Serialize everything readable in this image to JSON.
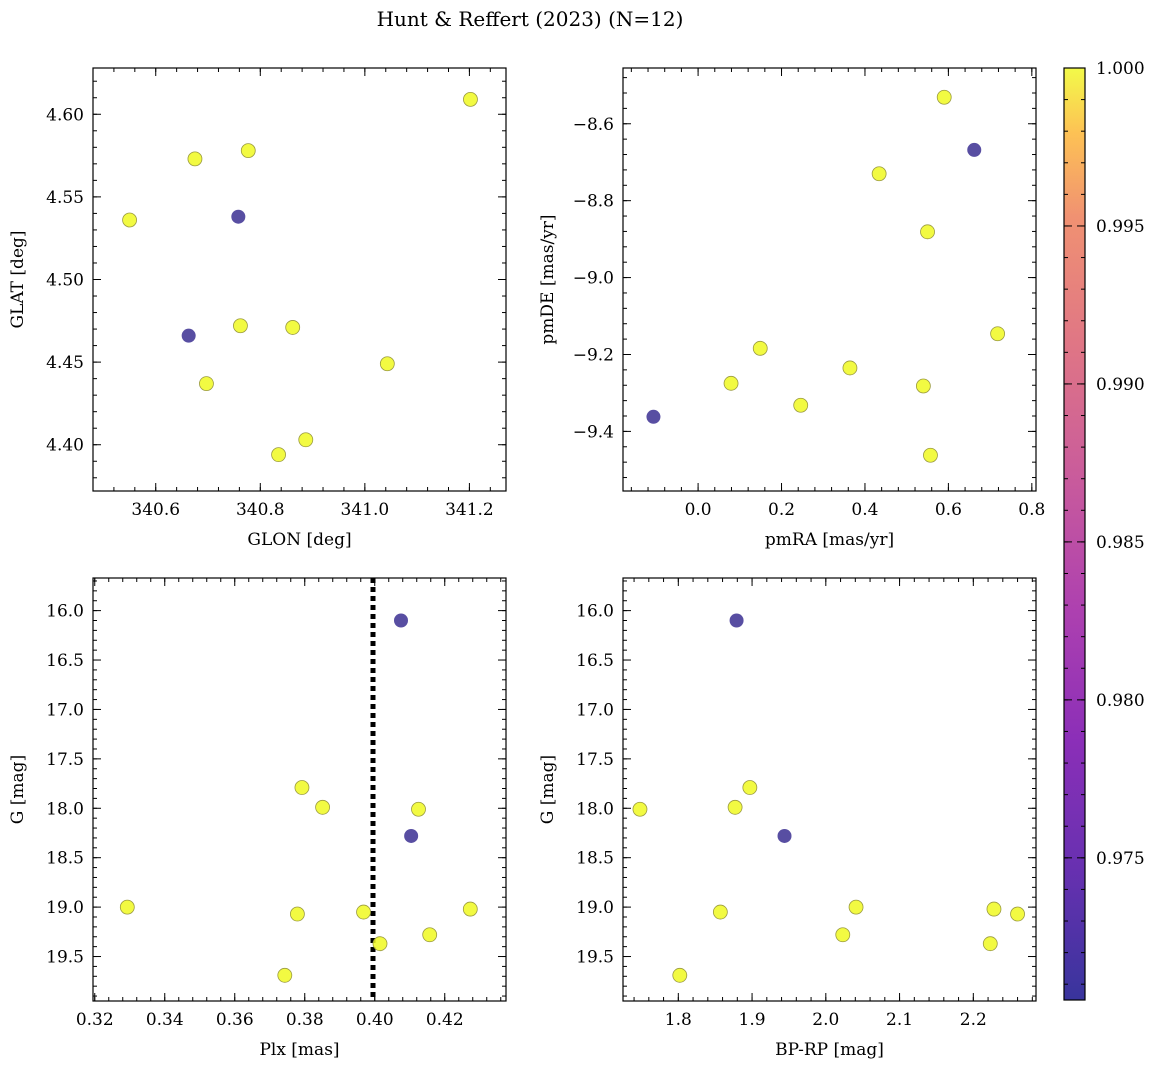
{
  "figure": {
    "title": "Hunt & Reffert (2023) (N=12)"
  },
  "colors": {
    "member": "#f0f921",
    "low": "#3b2f92",
    "edge": "#9a9a40",
    "vline": "#000000"
  },
  "colorbar": {
    "colormap": "plasma",
    "range": [
      0.9705,
      1.0
    ],
    "ticks": [
      0.975,
      0.98,
      0.985,
      0.99,
      0.995,
      1.0
    ],
    "tick_labels": [
      "0.975",
      "0.980",
      "0.985",
      "0.990",
      "0.995",
      "1.000"
    ]
  },
  "chart_data": [
    {
      "type": "scatter",
      "xlabel": "GLON [deg]",
      "ylabel": "GLAT [deg]",
      "xlim": [
        340.48,
        341.27
      ],
      "ylim": [
        4.372,
        4.628
      ],
      "xticks": [
        340.6,
        340.8,
        341.0,
        341.2
      ],
      "xtick_labels": [
        "340.6",
        "340.8",
        "341.0",
        "341.2"
      ],
      "yticks": [
        4.4,
        4.45,
        4.5,
        4.55,
        4.6
      ],
      "ytick_labels": [
        "4.40",
        "4.45",
        "4.50",
        "4.55",
        "4.60"
      ],
      "points": [
        {
          "x": 340.55,
          "y": 4.536,
          "c": 1.0
        },
        {
          "x": 340.675,
          "y": 4.573,
          "c": 1.0
        },
        {
          "x": 340.777,
          "y": 4.578,
          "c": 1.0
        },
        {
          "x": 341.202,
          "y": 4.609,
          "c": 1.0
        },
        {
          "x": 340.758,
          "y": 4.538,
          "c": 0.971
        },
        {
          "x": 340.663,
          "y": 4.466,
          "c": 0.971
        },
        {
          "x": 340.762,
          "y": 4.472,
          "c": 1.0
        },
        {
          "x": 340.862,
          "y": 4.471,
          "c": 1.0
        },
        {
          "x": 341.043,
          "y": 4.449,
          "c": 1.0
        },
        {
          "x": 340.697,
          "y": 4.437,
          "c": 1.0
        },
        {
          "x": 340.887,
          "y": 4.403,
          "c": 1.0
        },
        {
          "x": 340.835,
          "y": 4.394,
          "c": 1.0
        }
      ]
    },
    {
      "type": "scatter",
      "xlabel": "pmRA [mas/yr]",
      "ylabel": "pmDE [mas/yr]",
      "xlim": [
        -0.18,
        0.81
      ],
      "ylim": [
        -9.555,
        -8.455
      ],
      "xticks": [
        0.0,
        0.2,
        0.4,
        0.6,
        0.8
      ],
      "xtick_labels": [
        "0.0",
        "0.2",
        "0.4",
        "0.6",
        "0.8"
      ],
      "yticks": [
        -9.4,
        -9.2,
        -9.0,
        -8.8,
        -8.6
      ],
      "ytick_labels": [
        "−9.4",
        "−9.2",
        "−9.0",
        "−8.8",
        "−8.6"
      ],
      "points": [
        {
          "x": 0.59,
          "y": -8.531,
          "c": 1.0
        },
        {
          "x": 0.662,
          "y": -8.668,
          "c": 0.971
        },
        {
          "x": 0.434,
          "y": -8.73,
          "c": 1.0
        },
        {
          "x": 0.55,
          "y": -8.881,
          "c": 1.0
        },
        {
          "x": 0.718,
          "y": -9.146,
          "c": 1.0
        },
        {
          "x": 0.149,
          "y": -9.184,
          "c": 1.0
        },
        {
          "x": 0.364,
          "y": -9.235,
          "c": 1.0
        },
        {
          "x": 0.079,
          "y": -9.275,
          "c": 1.0
        },
        {
          "x": 0.54,
          "y": -9.282,
          "c": 1.0
        },
        {
          "x": 0.246,
          "y": -9.332,
          "c": 1.0
        },
        {
          "x": -0.107,
          "y": -9.362,
          "c": 0.971
        },
        {
          "x": 0.557,
          "y": -9.462,
          "c": 1.0
        }
      ]
    },
    {
      "type": "scatter",
      "xlabel": "Plx [mas]",
      "ylabel": "G [mag]",
      "xlim": [
        0.3195,
        0.4375
      ],
      "ylim": [
        19.95,
        15.67
      ],
      "inverted_y": true,
      "vline": 0.3995,
      "xticks": [
        0.32,
        0.34,
        0.36,
        0.38,
        0.4,
        0.42
      ],
      "xtick_labels": [
        "0.32",
        "0.34",
        "0.36",
        "0.38",
        "0.40",
        "0.42"
      ],
      "yticks": [
        16.0,
        16.5,
        17.0,
        17.5,
        18.0,
        18.5,
        19.0,
        19.5
      ],
      "ytick_labels": [
        "16.0",
        "16.5",
        "17.0",
        "17.5",
        "18.0",
        "18.5",
        "19.0",
        "19.5"
      ],
      "points": [
        {
          "x": 0.4075,
          "y": 16.1,
          "c": 0.971
        },
        {
          "x": 0.3792,
          "y": 17.79,
          "c": 1.0
        },
        {
          "x": 0.3851,
          "y": 17.99,
          "c": 1.0
        },
        {
          "x": 0.4125,
          "y": 18.01,
          "c": 1.0
        },
        {
          "x": 0.4104,
          "y": 18.28,
          "c": 0.971
        },
        {
          "x": 0.3293,
          "y": 19.0,
          "c": 1.0
        },
        {
          "x": 0.4273,
          "y": 19.02,
          "c": 1.0
        },
        {
          "x": 0.3968,
          "y": 19.05,
          "c": 1.0
        },
        {
          "x": 0.3779,
          "y": 19.07,
          "c": 1.0
        },
        {
          "x": 0.4157,
          "y": 19.28,
          "c": 1.0
        },
        {
          "x": 0.4015,
          "y": 19.37,
          "c": 1.0
        },
        {
          "x": 0.3743,
          "y": 19.69,
          "c": 1.0
        }
      ]
    },
    {
      "type": "scatter",
      "xlabel": "BP-RP [mag]",
      "ylabel": "G [mag]",
      "xlim": [
        1.725,
        2.285
      ],
      "ylim": [
        19.95,
        15.67
      ],
      "inverted_y": true,
      "xticks": [
        1.8,
        1.9,
        2.0,
        2.1,
        2.2
      ],
      "xtick_labels": [
        "1.8",
        "1.9",
        "2.0",
        "2.1",
        "2.2"
      ],
      "yticks": [
        16.0,
        16.5,
        17.0,
        17.5,
        18.0,
        18.5,
        19.0,
        19.5
      ],
      "ytick_labels": [
        "16.0",
        "16.5",
        "17.0",
        "17.5",
        "18.0",
        "18.5",
        "19.0",
        "19.5"
      ],
      "points": [
        {
          "x": 1.879,
          "y": 16.1,
          "c": 0.971
        },
        {
          "x": 1.897,
          "y": 17.79,
          "c": 1.0
        },
        {
          "x": 1.877,
          "y": 17.99,
          "c": 1.0
        },
        {
          "x": 1.748,
          "y": 18.01,
          "c": 1.0
        },
        {
          "x": 1.944,
          "y": 18.28,
          "c": 0.971
        },
        {
          "x": 2.041,
          "y": 19.0,
          "c": 1.0
        },
        {
          "x": 2.228,
          "y": 19.02,
          "c": 1.0
        },
        {
          "x": 1.857,
          "y": 19.05,
          "c": 1.0
        },
        {
          "x": 2.26,
          "y": 19.07,
          "c": 1.0
        },
        {
          "x": 2.023,
          "y": 19.28,
          "c": 1.0
        },
        {
          "x": 2.223,
          "y": 19.37,
          "c": 1.0
        },
        {
          "x": 1.802,
          "y": 19.69,
          "c": 1.0
        }
      ]
    }
  ]
}
